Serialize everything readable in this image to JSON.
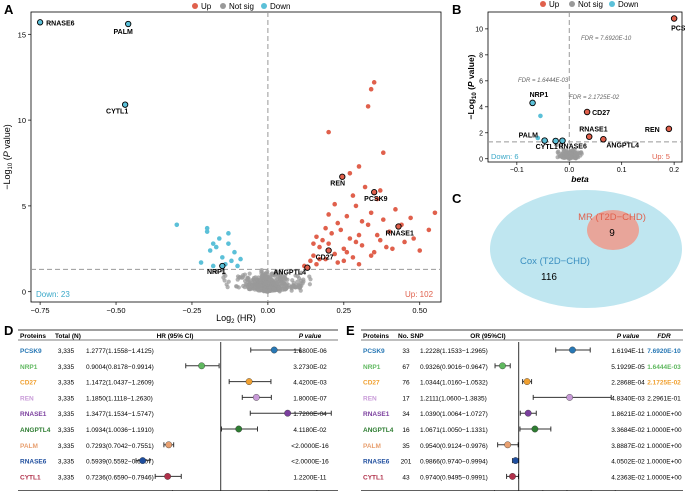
{
  "panels": {
    "A": {
      "letter": "A",
      "legend": [
        "Up",
        "Not sig",
        "Down"
      ],
      "x_ticks": [
        "−0.75",
        "−0.50",
        "−0.25",
        "0.00",
        "0.25",
        "0.50"
      ],
      "y_ticks": [
        "0",
        "5",
        "10",
        "15"
      ],
      "xlabel_pre": "Log",
      "xlabel_sub": "2",
      "xlabel_post": " (HR)",
      "ylabel_pre": "−Log",
      "ylabel_sub": "10",
      "ylabel_post": " (",
      "ylabel_italic": "P",
      "ylabel_end": " value)",
      "down_text": "Down: 23",
      "up_text": "Up: 102"
    },
    "B": {
      "letter": "B",
      "legend": [
        "Up",
        "Not sig",
        "Down"
      ],
      "x_ticks": [
        "−0.1",
        "0.0",
        "0.1",
        "0.2"
      ],
      "y_ticks": [
        "0",
        "2",
        "4",
        "6",
        "8",
        "10"
      ],
      "xlabel": "beta",
      "ylabel_pre": "−Log",
      "ylabel_sub": "10",
      "ylabel_post": " (",
      "ylabel_italic": "P",
      "ylabel_end": " value)",
      "down_text": "Down: 6",
      "up_text": "Up: 5",
      "fdr_pcsk9": "FDR = 7.6920E-10",
      "fdr_nrp1": "FDR = 1.6444E-03",
      "fdr_cd27": "FDR = 2.1725E-02"
    },
    "C": {
      "letter": "C",
      "mr_label": "MR (T2D−CHD)",
      "mr_count": "9",
      "cox_label": "Cox (T2D−CHD)",
      "cox_count": "116"
    },
    "D": {
      "letter": "D",
      "headers": [
        "Proteins",
        "Total (N)",
        "HR (95% CI)",
        "P value"
      ],
      "x_ticks": [
        "0.75",
        "1.00",
        "1.25",
        "1.50"
      ],
      "rows": [
        {
          "protein": "PCSK9",
          "n": "3,335",
          "ci": "1.2777(1.1558−1.4125)",
          "p": "1.6800E-06",
          "color": "#2878b5"
        },
        {
          "protein": "NRP1",
          "n": "3,335",
          "ci": "0.9004(0.8178−0.9914)",
          "p": "3.2730E-02",
          "color": "#5fb85f"
        },
        {
          "protein": "CD27",
          "n": "3,335",
          "ci": "1.1472(1.0437−1.2609)",
          "p": "4.4200E-03",
          "color": "#f0a030"
        },
        {
          "protein": "REN",
          "n": "3,335",
          "ci": "1.1850(1.1118−1.2630)",
          "p": "1.8000E-07",
          "color": "#c89ad8"
        },
        {
          "protein": "RNASE1",
          "n": "3,335",
          "ci": "1.3477(1.1534−1.5747)",
          "p": "1.7200E-04",
          "color": "#7b3f9e"
        },
        {
          "protein": "ANGPTL4",
          "n": "3,335",
          "ci": "1.0934(1.0036−1.1910)",
          "p": "4.1180E-02",
          "color": "#2e7d32"
        },
        {
          "protein": "PALM",
          "n": "3,335",
          "ci": "0.7293(0.7042−0.7551)",
          "p": "<2.0000E-16",
          "color": "#e8a070"
        },
        {
          "protein": "RNASE6",
          "n": "3,335",
          "ci": "0.5939(0.5592−0.6307)",
          "p": "<2.0000E-16",
          "color": "#1f4e9e"
        },
        {
          "protein": "CYTL1",
          "n": "3,335",
          "ci": "0.7236(0.6590−0.7946)",
          "p": "1.2200E-11",
          "color": "#b0304a"
        }
      ]
    },
    "E": {
      "letter": "E",
      "headers": [
        "Proteins",
        "No. SNP",
        "OR (95%CI)",
        "P value",
        "FDR"
      ],
      "x_ticks": [
        "0.9",
        "1.0",
        "1.1",
        "1.2",
        "1.3",
        "1.4"
      ],
      "rows": [
        {
          "protein": "PCSK9",
          "n": "33",
          "ci": "1.2228(1.1533−1.2965)",
          "p": "1.6194E-11",
          "fdr": "7.6920E-10",
          "color": "#2878b5"
        },
        {
          "protein": "NRP1",
          "n": "67",
          "ci": "0.9326(0.9016−0.9647)",
          "p": "5.1929E-05",
          "fdr": "1.6444E-03",
          "color": "#5fb85f"
        },
        {
          "protein": "CD27",
          "n": "76",
          "ci": "1.0344(1.0160−1.0532)",
          "p": "2.2868E-04",
          "fdr": "2.1725E-02",
          "color": "#f0a030"
        },
        {
          "protein": "REN",
          "n": "17",
          "ci": "1.2111(1.0600−1.3835)",
          "p": "4.8340E-03",
          "fdr": "2.2961E-01",
          "color": "#c89ad8"
        },
        {
          "protein": "RNASE1",
          "n": "34",
          "ci": "1.0390(1.0064−1.0727)",
          "p": "1.8621E-02",
          "fdr": "1.0000E+00",
          "color": "#7b3f9e"
        },
        {
          "protein": "ANGPTL4",
          "n": "16",
          "ci": "1.0671(1.0050−1.1331)",
          "p": "3.3684E-02",
          "fdr": "1.0000E+00",
          "color": "#2e7d32"
        },
        {
          "protein": "PALM",
          "n": "35",
          "ci": "0.9540(0.9124−0.9976)",
          "p": "3.8887E-02",
          "fdr": "1.0000E+00",
          "color": "#e8a070"
        },
        {
          "protein": "RNASE6",
          "n": "201",
          "ci": "0.9866(0.9740−0.9994)",
          "p": "4.0502E-02",
          "fdr": "1.0000E+00",
          "color": "#1f4e9e"
        },
        {
          "protein": "CYTL1",
          "n": "43",
          "ci": "0.9740(0.9495−0.9991)",
          "p": "4.2363E-02",
          "fdr": "1.0000E+00",
          "color": "#b0304a"
        }
      ]
    }
  },
  "colors": {
    "up": "#e0604c",
    "notsig": "#999999",
    "down": "#5bc0d8",
    "venn_outer": "#bfe6f0",
    "venn_inner": "#e8a59a",
    "mr_text": "#e0604c",
    "cox_text": "#3a8fc0"
  },
  "chart_data": [
    {
      "type": "scatter",
      "panel": "A",
      "xlabel": "Log2 (HR)",
      "ylabel": "−Log10 (P value)",
      "xlim": [
        -0.78,
        0.57
      ],
      "ylim": [
        -0.6,
        16.3
      ],
      "threshold_x": 0,
      "threshold_y": 1.3,
      "labeled_points": [
        {
          "label": "RNASE6",
          "x": -0.75,
          "y": 15.7,
          "group": "Down"
        },
        {
          "label": "PALM",
          "x": -0.46,
          "y": 15.6,
          "group": "Down"
        },
        {
          "label": "CYTL1",
          "x": -0.47,
          "y": 10.9,
          "group": "Down"
        },
        {
          "label": "NRP1",
          "x": -0.15,
          "y": 1.5,
          "group": "Down"
        },
        {
          "label": "REN",
          "x": 0.245,
          "y": 6.7,
          "group": "Up"
        },
        {
          "label": "PCSK9",
          "x": 0.35,
          "y": 5.8,
          "group": "Up"
        },
        {
          "label": "RNASE1",
          "x": 0.43,
          "y": 3.8,
          "group": "Up"
        },
        {
          "label": "CD27",
          "x": 0.2,
          "y": 2.4,
          "group": "Up"
        },
        {
          "label": "ANGPTL4",
          "x": 0.13,
          "y": 1.4,
          "group": "Up"
        }
      ],
      "up_points": [
        [
          0.12,
          1.5
        ],
        [
          0.14,
          1.8
        ],
        [
          0.15,
          2.1
        ],
        [
          0.16,
          1.6
        ],
        [
          0.17,
          2.6
        ],
        [
          0.18,
          3.0
        ],
        [
          0.19,
          1.9
        ],
        [
          0.2,
          2.8
        ],
        [
          0.21,
          3.4
        ],
        [
          0.22,
          2.2
        ],
        [
          0.23,
          4.0
        ],
        [
          0.24,
          3.6
        ],
        [
          0.25,
          2.5
        ],
        [
          0.26,
          4.4
        ],
        [
          0.27,
          3.1
        ],
        [
          0.28,
          2.0
        ],
        [
          0.29,
          5.0
        ],
        [
          0.3,
          3.3
        ],
        [
          0.31,
          2.7
        ],
        [
          0.32,
          6.1
        ],
        [
          0.33,
          3.9
        ],
        [
          0.34,
          4.6
        ],
        [
          0.35,
          2.3
        ],
        [
          0.36,
          5.4
        ],
        [
          0.37,
          3.0
        ],
        [
          0.38,
          4.2
        ],
        [
          0.39,
          2.6
        ],
        [
          0.4,
          3.5
        ],
        [
          0.42,
          4.8
        ],
        [
          0.45,
          2.9
        ],
        [
          0.47,
          4.3
        ],
        [
          0.5,
          2.4
        ],
        [
          0.53,
          3.6
        ],
        [
          0.55,
          4.6
        ],
        [
          0.33,
          10.8
        ],
        [
          0.34,
          11.8
        ],
        [
          0.35,
          12.2
        ],
        [
          0.38,
          8.1
        ],
        [
          0.3,
          7.3
        ],
        [
          0.2,
          9.3
        ],
        [
          0.15,
          2.8
        ],
        [
          0.17,
          1.9
        ],
        [
          0.19,
          3.7
        ],
        [
          0.23,
          1.7
        ],
        [
          0.26,
          2.3
        ],
        [
          0.28,
          5.6
        ],
        [
          0.31,
          4.1
        ],
        [
          0.36,
          3.3
        ],
        [
          0.41,
          2.5
        ],
        [
          0.44,
          3.9
        ],
        [
          0.22,
          5.1
        ],
        [
          0.25,
          1.8
        ],
        [
          0.27,
          6.9
        ],
        [
          0.34,
          2.1
        ],
        [
          0.16,
          3.2
        ],
        [
          0.3,
          1.6
        ],
        [
          0.37,
          5.9
        ],
        [
          0.2,
          4.5
        ],
        [
          0.48,
          3.1
        ],
        [
          0.29,
          2.9
        ]
      ],
      "down_points": [
        [
          -0.3,
          3.9
        ],
        [
          -0.2,
          3.7
        ],
        [
          -0.2,
          3.5
        ],
        [
          -0.18,
          2.8
        ],
        [
          -0.17,
          2.6
        ],
        [
          -0.19,
          2.4
        ],
        [
          -0.15,
          2.0
        ],
        [
          -0.13,
          2.8
        ],
        [
          -0.12,
          1.8
        ],
        [
          -0.14,
          1.6
        ],
        [
          -0.11,
          2.3
        ],
        [
          -0.16,
          3.1
        ],
        [
          -0.1,
          1.5
        ],
        [
          -0.22,
          1.7
        ],
        [
          -0.13,
          3.4
        ],
        [
          -0.09,
          1.9
        ],
        [
          -0.18,
          1.5
        ]
      ],
      "notsig_count": 420
    },
    {
      "type": "scatter",
      "panel": "B",
      "xlabel": "beta",
      "ylabel": "−Log10 (P value)",
      "xlim": [
        -0.155,
        0.215
      ],
      "ylim": [
        -0.25,
        11.3
      ],
      "threshold_x": 0,
      "threshold_y": 1.3,
      "labeled_points": [
        {
          "label": "PCSK9",
          "x": 0.2,
          "y": 10.8,
          "group": "Up"
        },
        {
          "label": "NRP1",
          "x": -0.07,
          "y": 4.3,
          "group": "Down"
        },
        {
          "label": "CD27",
          "x": 0.034,
          "y": 3.6,
          "group": "Up"
        },
        {
          "label": "RNASE1",
          "x": 0.038,
          "y": 1.7,
          "group": "Up"
        },
        {
          "label": "REN",
          "x": 0.19,
          "y": 2.3,
          "group": "Up"
        },
        {
          "label": "ANGPTL4",
          "x": 0.065,
          "y": 1.5,
          "group": "Up"
        },
        {
          "label": "PALM",
          "x": -0.047,
          "y": 1.4,
          "group": "Down"
        },
        {
          "label": "CYTL1",
          "x": -0.026,
          "y": 1.37,
          "group": "Down"
        },
        {
          "label": "RNASE6",
          "x": -0.013,
          "y": 1.39,
          "group": "Down"
        }
      ],
      "down_points": [
        [
          -0.06,
          1.6
        ],
        [
          -0.055,
          3.3
        ]
      ],
      "notsig_count": 140
    },
    {
      "type": "table",
      "panel": "D",
      "title": "",
      "xlabel": "",
      "columns": [
        "Proteins",
        "Total (N)",
        "HR (95% CI)",
        "P value"
      ],
      "xlim": [
        0.58,
        1.62
      ],
      "reference": 1.0,
      "estimates": [
        {
          "protein": "PCSK9",
          "est": 1.2777,
          "low": 1.1558,
          "high": 1.4125
        },
        {
          "protein": "NRP1",
          "est": 0.9004,
          "low": 0.8178,
          "high": 0.9914
        },
        {
          "protein": "CD27",
          "est": 1.1472,
          "low": 1.0437,
          "high": 1.2609
        },
        {
          "protein": "REN",
          "est": 1.185,
          "low": 1.1118,
          "high": 1.263
        },
        {
          "protein": "RNASE1",
          "est": 1.3477,
          "low": 1.1534,
          "high": 1.5747
        },
        {
          "protein": "ANGPTL4",
          "est": 1.0934,
          "low": 1.0036,
          "high": 1.191
        },
        {
          "protein": "PALM",
          "est": 0.7293,
          "low": 0.7042,
          "high": 0.7551
        },
        {
          "protein": "RNASE6",
          "est": 0.5939,
          "low": 0.5592,
          "high": 0.6307
        },
        {
          "protein": "CYTL1",
          "est": 0.7236,
          "low": 0.659,
          "high": 0.7946
        }
      ]
    },
    {
      "type": "table",
      "panel": "E",
      "title": "",
      "xlabel": "",
      "columns": [
        "Proteins",
        "No. SNP",
        "OR (95%CI)",
        "P value",
        "FDR"
      ],
      "xlim": [
        0.86,
        1.42
      ],
      "reference": 1.0,
      "estimates": [
        {
          "protein": "PCSK9",
          "est": 1.2228,
          "low": 1.1533,
          "high": 1.2965
        },
        {
          "protein": "NRP1",
          "est": 0.9326,
          "low": 0.9016,
          "high": 0.9647
        },
        {
          "protein": "CD27",
          "est": 1.0344,
          "low": 1.016,
          "high": 1.0532
        },
        {
          "protein": "REN",
          "est": 1.2111,
          "low": 1.06,
          "high": 1.3835
        },
        {
          "protein": "RNASE1",
          "est": 1.039,
          "low": 1.0064,
          "high": 1.0727
        },
        {
          "protein": "ANGPTL4",
          "est": 1.0671,
          "low": 1.005,
          "high": 1.1331
        },
        {
          "protein": "PALM",
          "est": 0.954,
          "low": 0.9124,
          "high": 0.9976
        },
        {
          "protein": "RNASE6",
          "est": 0.9866,
          "low": 0.974,
          "high": 0.9994
        },
        {
          "protein": "CYTL1",
          "est": 0.974,
          "low": 0.9495,
          "high": 0.9991
        }
      ]
    }
  ]
}
